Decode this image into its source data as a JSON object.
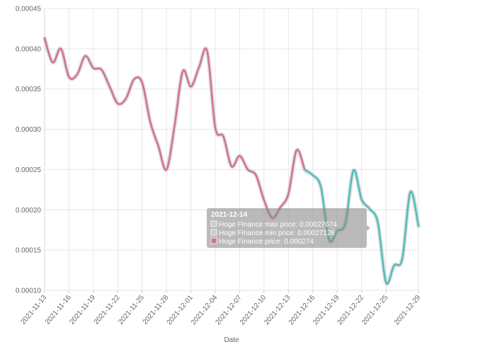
{
  "chart_data": {
    "type": "line",
    "xlabel": "Date",
    "ylabel": "",
    "ylim": [
      0.0001,
      0.00045
    ],
    "y_ticks": [
      "0.00010",
      "0.00015",
      "0.00020",
      "0.00025",
      "0.00030",
      "0.00035",
      "0.00040",
      "0.00045"
    ],
    "x_ticks": [
      "2021-11-13",
      "2021-11-16",
      "2021-11-19",
      "2021-11-22",
      "2021-11-25",
      "2021-11-28",
      "2021-12-01",
      "2021-12-04",
      "2021-12-07",
      "2021-12-10",
      "2021-12-13",
      "2021-12-16",
      "2021-12-19",
      "2021-12-22",
      "2021-12-25",
      "2021-12-29"
    ],
    "grid": true,
    "colors": {
      "before": "#d27090",
      "after": "#4dbdb8",
      "band": "#cccccc"
    },
    "x": [
      "2021-11-13",
      "2021-11-14",
      "2021-11-15",
      "2021-11-16",
      "2021-11-17",
      "2021-11-18",
      "2021-11-19",
      "2021-11-20",
      "2021-11-21",
      "2021-11-22",
      "2021-11-23",
      "2021-11-24",
      "2021-11-25",
      "2021-11-26",
      "2021-11-27",
      "2021-11-28",
      "2021-11-29",
      "2021-11-30",
      "2021-12-01",
      "2021-12-02",
      "2021-12-03",
      "2021-12-04",
      "2021-12-05",
      "2021-12-06",
      "2021-12-07",
      "2021-12-08",
      "2021-12-09",
      "2021-12-10",
      "2021-12-11",
      "2021-12-12",
      "2021-12-13",
      "2021-12-14",
      "2021-12-15",
      "2021-12-16",
      "2021-12-17",
      "2021-12-18",
      "2021-12-19",
      "2021-12-20",
      "2021-12-21",
      "2021-12-22",
      "2021-12-23",
      "2021-12-24",
      "2021-12-25",
      "2021-12-26",
      "2021-12-27",
      "2021-12-28",
      "2021-12-29"
    ],
    "series": [
      {
        "name": "Hoge Finance price",
        "values": [
          0.000413,
          0.000383,
          0.0004,
          0.000365,
          0.000368,
          0.000391,
          0.000376,
          0.000374,
          0.000353,
          0.000332,
          0.000338,
          0.000362,
          0.000358,
          0.000309,
          0.000279,
          0.00025,
          0.000305,
          0.000372,
          0.000353,
          0.000377,
          0.000397,
          0.000302,
          0.000291,
          0.000254,
          0.000267,
          0.00025,
          0.000243,
          0.000212,
          0.00019,
          0.000203,
          0.00022,
          0.000274,
          0.00025,
          0.000243,
          0.000228,
          0.000163,
          0.000174,
          0.000183,
          0.000249,
          0.000213,
          0.000201,
          0.000184,
          0.00011,
          0.000131,
          0.000139,
          0.000222,
          0.00018
        ]
      }
    ],
    "split_index": 32,
    "tooltip": {
      "title": "2021-12-14",
      "lines": [
        {
          "label": "Hoge Finance max price: 0.00027674",
          "swatch": "#cccccc"
        },
        {
          "label": "Hoge Finance min price: 0.00027126",
          "swatch": "#cccccc"
        },
        {
          "label": "Hoge Finance price: 0.000274",
          "swatch": "#d27090"
        }
      ]
    }
  }
}
